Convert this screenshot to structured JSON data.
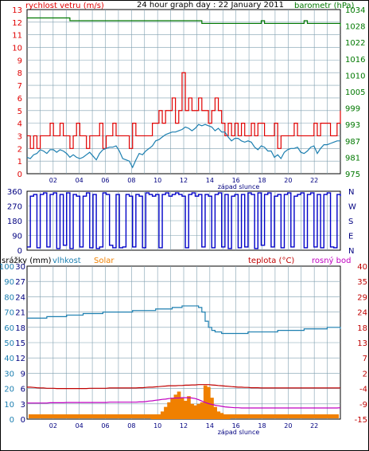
{
  "title": "24 hour graph day : 22 January 2011",
  "colors": {
    "wind": "#e00000",
    "wind_avg": "#1c7fb0",
    "pressure": "#007800",
    "direction": "#0000c8",
    "rain": "#0000c8",
    "humidity": "#1c7fb0",
    "solar": "#f08000",
    "temperature": "#c00000",
    "dew": "#c000c0",
    "grid": "#7f9faf"
  },
  "chart_data": [
    {
      "type": "line",
      "name": "wind-pressure",
      "left_axis_label": "rychlost vetru (m/s)",
      "right_axis_label": "barometr (hPa)",
      "left_ticks": [
        "13",
        "12",
        "11",
        "10",
        "9",
        "8",
        "7",
        "6",
        "5",
        "4",
        "3",
        "2",
        "1",
        "0"
      ],
      "right_ticks": [
        "1034",
        "1028",
        "1022",
        "1016",
        "1010",
        "1005",
        "999",
        "993",
        "987",
        "981",
        "975"
      ],
      "ylim_left": [
        0,
        13
      ],
      "ylim_right": [
        975,
        1034
      ],
      "x_ticks": [
        "02",
        "04",
        "06",
        "08",
        "10",
        "12",
        "14",
        "16",
        "18",
        "20",
        "22"
      ],
      "x_annotation": "západ slunce",
      "series": [
        {
          "name": "wind-gust",
          "values": [
            3,
            2,
            3,
            2,
            3,
            3,
            3,
            4,
            3,
            3,
            4,
            3,
            3,
            2,
            3,
            4,
            3,
            3,
            2,
            3,
            3,
            3,
            4,
            2,
            3,
            3,
            4,
            3,
            3,
            3,
            3,
            2,
            4,
            3,
            3,
            3,
            3,
            3,
            4,
            4,
            5,
            4,
            5,
            5,
            6,
            4,
            5,
            8,
            5,
            6,
            5,
            5,
            6,
            5,
            5,
            4,
            5,
            6,
            5,
            4,
            3,
            4,
            3,
            4,
            3,
            4,
            3,
            3,
            4,
            3,
            4,
            4,
            3,
            3,
            3,
            4,
            2,
            3,
            3,
            3,
            3,
            4,
            3,
            3,
            3,
            3,
            3,
            4,
            3,
            4,
            4,
            4,
            3,
            3,
            4,
            5
          ]
        },
        {
          "name": "wind-average",
          "values": [
            1.3,
            1.2,
            1.5,
            1.6,
            1.9,
            1.8,
            1.6,
            1.9,
            1.9,
            1.7,
            1.9,
            1.8,
            1.6,
            1.3,
            1.5,
            1.3,
            1.2,
            1.3,
            1.5,
            1.7,
            1.4,
            1.1,
            1.6,
            1.9,
            2.0,
            2.1,
            2.1,
            2.2,
            1.8,
            1.2,
            1.1,
            1.0,
            0.5,
            1.1,
            1.6,
            1.5,
            1.8,
            2.0,
            2.2,
            2.6,
            2.7,
            2.9,
            3.1,
            3.2,
            3.3,
            3.3,
            3.4,
            3.5,
            3.7,
            3.6,
            3.4,
            3.6,
            3.9,
            3.8,
            3.9,
            3.8,
            3.7,
            3.4,
            3.6,
            3.3,
            3.3,
            2.9,
            2.6,
            2.8,
            2.8,
            2.6,
            2.5,
            2.6,
            2.5,
            2.1,
            1.9,
            2.2,
            2.1,
            1.8,
            1.8,
            1.3,
            1.5,
            1.2,
            1.7,
            1.9,
            2.0,
            2.0,
            2.1,
            1.7,
            1.6,
            1.8,
            2.1,
            2.2,
            1.6,
            2.0,
            2.3,
            2.3,
            2.4,
            2.5,
            2.6,
            2.6
          ]
        },
        {
          "name": "pressure",
          "values": [
            1031,
            1031,
            1031,
            1031,
            1031,
            1031,
            1031,
            1031,
            1031,
            1031,
            1031,
            1031,
            1031,
            1030,
            1030,
            1030,
            1030,
            1030,
            1030,
            1030,
            1030,
            1030,
            1030,
            1030,
            1030,
            1030,
            1030,
            1030,
            1030,
            1030,
            1030,
            1030,
            1030,
            1030,
            1030,
            1030,
            1030,
            1030,
            1030,
            1030,
            1030,
            1030,
            1030,
            1030,
            1030,
            1030,
            1030,
            1030,
            1030,
            1030,
            1030,
            1030,
            1030,
            1029,
            1029,
            1029,
            1029,
            1029,
            1029,
            1029,
            1029,
            1029,
            1029,
            1029,
            1029,
            1029,
            1029,
            1029,
            1029,
            1029,
            1029,
            1030,
            1029,
            1029,
            1029,
            1029,
            1029,
            1029,
            1029,
            1029,
            1029,
            1029,
            1029,
            1029,
            1030,
            1029,
            1029,
            1029,
            1029,
            1029,
            1029,
            1029,
            1029,
            1029,
            1029,
            1028
          ]
        }
      ]
    },
    {
      "type": "line",
      "name": "wind-direction",
      "left_ticks": [
        "360",
        "270",
        "180",
        "90",
        "0"
      ],
      "right_ticks": [
        "N",
        "W",
        "S",
        "E",
        "N"
      ],
      "ylim": [
        0,
        360
      ],
      "series": [
        {
          "name": "direction",
          "values": [
            20,
            330,
            340,
            15,
            340,
            350,
            20,
            340,
            350,
            10,
            340,
            30,
            350,
            10,
            340,
            330,
            20,
            330,
            350,
            15,
            340,
            10,
            20,
            350,
            340,
            30,
            15,
            340,
            15,
            20,
            340,
            330,
            20,
            340,
            330,
            15,
            350,
            340,
            330,
            340,
            15,
            340,
            350,
            330,
            340,
            350,
            340,
            330,
            15,
            340,
            350,
            330,
            340,
            20,
            340,
            330,
            15,
            340,
            350,
            20,
            340,
            10,
            330,
            340,
            15,
            340,
            20,
            350,
            340,
            10,
            350,
            30,
            340,
            350,
            20,
            330,
            340,
            15,
            340,
            350,
            20,
            330,
            340,
            350,
            15,
            340,
            350,
            20,
            340,
            15,
            340,
            350,
            20,
            15,
            340,
            330
          ]
        }
      ]
    },
    {
      "type": "line",
      "name": "rain-humidity-solar-temperature",
      "left_axis_label": "srážky (mm)",
      "label_humidity": "vlhkost",
      "label_solar": "Solar",
      "label_temperature": "teplota (°C)",
      "label_dew": "rosný bod",
      "rain_ticks": [
        "30",
        "27",
        "24",
        "21",
        "18",
        "15",
        "12",
        "9",
        "6",
        "3",
        "0"
      ],
      "humidity_ticks": [
        "100",
        "90",
        "80",
        "70",
        "60",
        "50",
        "40",
        "30",
        "20",
        "10",
        "0"
      ],
      "temp_ticks": [
        "40",
        "35",
        "29",
        "24",
        "18",
        "13",
        "7",
        "2",
        "-4",
        "-9",
        "-15"
      ],
      "x_ticks": [
        "02",
        "04",
        "06",
        "08",
        "10",
        "12",
        "14",
        "16",
        "18",
        "20",
        "22"
      ],
      "x_annotation": "západ slunce",
      "ylim_humidity": [
        0,
        100
      ],
      "ylim_temperature": [
        -15,
        40
      ],
      "series": [
        {
          "name": "humidity",
          "values": [
            66,
            66,
            66,
            66,
            66,
            66,
            67,
            67,
            67,
            67,
            67,
            67,
            68,
            68,
            68,
            68,
            68,
            69,
            69,
            69,
            69,
            69,
            69,
            70,
            70,
            70,
            70,
            70,
            70,
            70,
            70,
            70,
            71,
            71,
            71,
            71,
            71,
            71,
            71,
            72,
            72,
            72,
            72,
            72,
            73,
            73,
            73,
            74,
            74,
            74,
            74,
            74,
            73,
            70,
            64,
            60,
            58,
            57,
            57,
            56,
            56,
            56,
            56,
            56,
            56,
            56,
            56,
            57,
            57,
            57,
            57,
            57,
            57,
            57,
            57,
            57,
            58,
            58,
            58,
            58,
            58,
            58,
            58,
            58,
            59,
            59,
            59,
            59,
            59,
            59,
            59,
            60,
            60,
            60,
            60,
            59
          ]
        },
        {
          "name": "temperature",
          "values": [
            -3.5,
            -3.5,
            -3.6,
            -3.7,
            -3.8,
            -3.8,
            -3.9,
            -3.9,
            -3.9,
            -4.0,
            -4.0,
            -4.0,
            -4.0,
            -4.0,
            -4.0,
            -4.0,
            -4.0,
            -4.0,
            -4.0,
            -3.9,
            -3.9,
            -3.9,
            -3.9,
            -3.9,
            -3.9,
            -3.8,
            -3.8,
            -3.8,
            -3.8,
            -3.8,
            -3.8,
            -3.8,
            -3.8,
            -3.8,
            -3.7,
            -3.7,
            -3.6,
            -3.5,
            -3.5,
            -3.4,
            -3.3,
            -3.2,
            -3.1,
            -3.0,
            -3.0,
            -3.0,
            -2.9,
            -2.9,
            -2.8,
            -2.8,
            -2.7,
            -2.7,
            -2.6,
            -2.6,
            -2.6,
            -2.6,
            -2.7,
            -2.8,
            -2.9,
            -3.0,
            -3.1,
            -3.2,
            -3.3,
            -3.4,
            -3.5,
            -3.5,
            -3.6,
            -3.6,
            -3.7,
            -3.7,
            -3.7,
            -3.8,
            -3.8,
            -3.8,
            -3.8,
            -3.8,
            -3.8,
            -3.8,
            -3.8,
            -3.8,
            -3.8,
            -3.8,
            -3.8,
            -3.8,
            -3.8,
            -3.8,
            -3.8,
            -3.8,
            -3.8,
            -3.8,
            -3.8,
            -3.8,
            -3.8,
            -3.8,
            -3.8,
            -3.8
          ]
        },
        {
          "name": "dew-point",
          "values": [
            -9.2,
            -9.2,
            -9.2,
            -9.2,
            -9.2,
            -9.2,
            -9.2,
            -9.1,
            -9.1,
            -9.1,
            -9.1,
            -9.1,
            -9.0,
            -9.0,
            -9.0,
            -9.0,
            -9.0,
            -9.0,
            -9.0,
            -9.0,
            -9.0,
            -9.0,
            -9.0,
            -9.0,
            -9.0,
            -8.9,
            -8.9,
            -8.9,
            -8.9,
            -8.9,
            -8.9,
            -8.9,
            -8.9,
            -8.9,
            -8.8,
            -8.8,
            -8.7,
            -8.5,
            -8.4,
            -8.2,
            -8.1,
            -7.9,
            -7.8,
            -7.6,
            -7.5,
            -7.4,
            -7.4,
            -7.3,
            -7.3,
            -7.3,
            -7.4,
            -7.6,
            -8.0,
            -8.5,
            -9.0,
            -9.4,
            -9.7,
            -10.0,
            -10.2,
            -10.4,
            -10.6,
            -10.7,
            -10.8,
            -10.9,
            -10.9,
            -11.0,
            -11.0,
            -11.0,
            -11.0,
            -11.0,
            -11.0,
            -11.0,
            -11.0,
            -11.0,
            -11.0,
            -11.0,
            -11.0,
            -11.0,
            -11.0,
            -11.0,
            -11.0,
            -11.0,
            -11.0,
            -11.0,
            -11.0,
            -11.0,
            -11.0,
            -11.0,
            -11.0,
            -11.0,
            -11.0,
            -11.0,
            -11.0,
            -11.0,
            -11.0,
            -10.9
          ]
        },
        {
          "name": "solar",
          "values": [
            0,
            0,
            0,
            0,
            0,
            0,
            0,
            0,
            0,
            0,
            0,
            0,
            0,
            0,
            0,
            0,
            0,
            0,
            0,
            0,
            0,
            0,
            0,
            0,
            0,
            0,
            0,
            0,
            0,
            0,
            0,
            0,
            0,
            0,
            0,
            0,
            0,
            0,
            1,
            2,
            3,
            5,
            8,
            11,
            14,
            16,
            18,
            14,
            12,
            15,
            10,
            9,
            10,
            11,
            22,
            21,
            14,
            8,
            5,
            4,
            3,
            1,
            0,
            0,
            0,
            0,
            0,
            0,
            0,
            0,
            0,
            0,
            0,
            0,
            0,
            0,
            0,
            0,
            0,
            0,
            0,
            0,
            0,
            0,
            0,
            0,
            0,
            0,
            0,
            0,
            0,
            0,
            0,
            0,
            0,
            0
          ]
        },
        {
          "name": "rain",
          "values": [
            0,
            0,
            0,
            0,
            0,
            0,
            0,
            0,
            0,
            0,
            0,
            0,
            0,
            0,
            0,
            0,
            0,
            0,
            0,
            0,
            0,
            0,
            0,
            0,
            0,
            0,
            0,
            0,
            0,
            0,
            0,
            0,
            0,
            0,
            0,
            0,
            0,
            0,
            0,
            0,
            0,
            0,
            0,
            0,
            0,
            0,
            0,
            0,
            0,
            0,
            0,
            0,
            0,
            0,
            0,
            0,
            0,
            0,
            0,
            0,
            0,
            0,
            0,
            0,
            0,
            0,
            0,
            0,
            0,
            0,
            0,
            0,
            0,
            0,
            0,
            0,
            0,
            0,
            0,
            0,
            0,
            0,
            0,
            0,
            0,
            0,
            0,
            0,
            0,
            0,
            0,
            0,
            0,
            0,
            0,
            0
          ]
        }
      ]
    }
  ]
}
